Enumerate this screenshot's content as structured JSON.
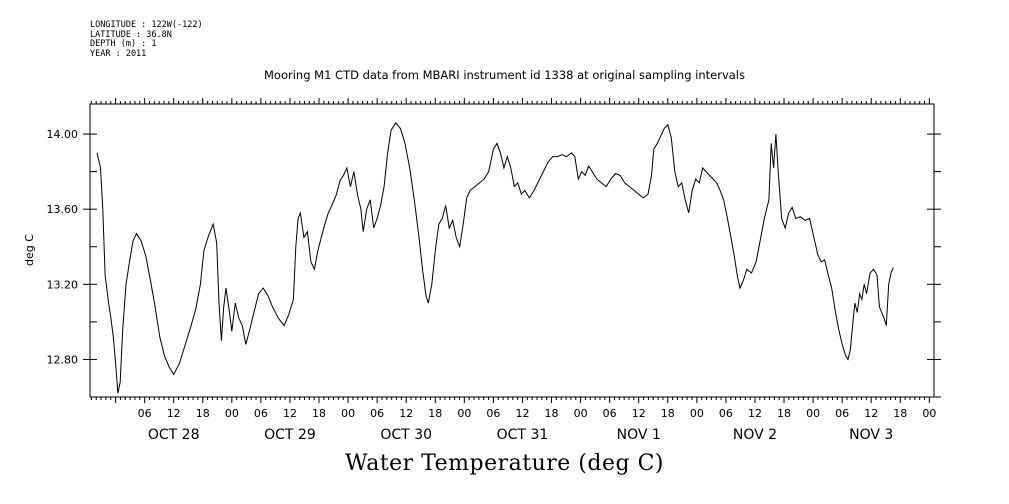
{
  "meta": {
    "longitude": "LONGITUDE : 122W(-122)",
    "latitude": "LATITUDE : 36.8N",
    "depth": "DEPTH (m) : 1",
    "year": "YEAR : 2011"
  },
  "chart_data": {
    "type": "line",
    "title": "Mooring M1 CTD data from MBARI instrument id 1338 at original sampling intervals",
    "xlabel": "Water Temperature (deg C)",
    "ylabel": "deg C",
    "ylim": [
      12.6,
      14.16
    ],
    "xlim": [
      -0.22,
      7.04
    ],
    "x_units": "days since 2011-10-28 00:00",
    "yticks": [
      12.8,
      13.2,
      13.6,
      14.0
    ],
    "ytick_labels": [
      "12.80",
      "13.20",
      "13.60",
      "14.00"
    ],
    "hour_ticks": [
      "06",
      "12",
      "18",
      "00",
      "06",
      "12",
      "18",
      "00",
      "06",
      "12",
      "18",
      "00",
      "06",
      "12",
      "18",
      "00",
      "06",
      "12",
      "18",
      "00",
      "06",
      "12",
      "18",
      "00",
      "06",
      "12",
      "18",
      "00"
    ],
    "hour_tick_positions": [
      0.25,
      0.5,
      0.75,
      1.0,
      1.25,
      1.5,
      1.75,
      2.0,
      2.25,
      2.5,
      2.75,
      3.0,
      3.25,
      3.5,
      3.75,
      4.0,
      4.25,
      4.5,
      4.75,
      5.0,
      5.25,
      5.5,
      5.75,
      6.0,
      6.25,
      6.5,
      6.75,
      7.0
    ],
    "day_labels": [
      "OCT 28",
      "OCT 29",
      "OCT 30",
      "OCT 31",
      "NOV  1",
      "NOV  2",
      "NOV  3"
    ],
    "day_label_positions": [
      0.5,
      1.5,
      2.5,
      3.5,
      4.5,
      5.5,
      6.5
    ],
    "grid": false,
    "series": [
      {
        "values": [
          [
            -0.16,
            13.9
          ],
          [
            -0.13,
            13.82
          ],
          [
            -0.11,
            13.6
          ],
          [
            -0.09,
            13.25
          ],
          [
            -0.06,
            13.1
          ],
          [
            -0.04,
            13.02
          ],
          [
            -0.02,
            12.92
          ],
          [
            0.0,
            12.78
          ],
          [
            0.02,
            12.62
          ],
          [
            0.04,
            12.68
          ],
          [
            0.06,
            12.95
          ],
          [
            0.09,
            13.2
          ],
          [
            0.12,
            13.32
          ],
          [
            0.15,
            13.43
          ],
          [
            0.18,
            13.47
          ],
          [
            0.22,
            13.43
          ],
          [
            0.26,
            13.35
          ],
          [
            0.3,
            13.22
          ],
          [
            0.34,
            13.08
          ],
          [
            0.38,
            12.92
          ],
          [
            0.42,
            12.82
          ],
          [
            0.46,
            12.76
          ],
          [
            0.5,
            12.72
          ],
          [
            0.55,
            12.78
          ],
          [
            0.6,
            12.88
          ],
          [
            0.65,
            12.98
          ],
          [
            0.69,
            13.07
          ],
          [
            0.73,
            13.2
          ],
          [
            0.76,
            13.38
          ],
          [
            0.8,
            13.46
          ],
          [
            0.84,
            13.52
          ],
          [
            0.87,
            13.42
          ],
          [
            0.89,
            13.1
          ],
          [
            0.91,
            12.9
          ],
          [
            0.93,
            13.08
          ],
          [
            0.95,
            13.18
          ],
          [
            0.98,
            13.05
          ],
          [
            1.0,
            12.95
          ],
          [
            1.03,
            13.1
          ],
          [
            1.06,
            13.02
          ],
          [
            1.09,
            12.98
          ],
          [
            1.12,
            12.88
          ],
          [
            1.15,
            12.95
          ],
          [
            1.19,
            13.05
          ],
          [
            1.23,
            13.15
          ],
          [
            1.27,
            13.18
          ],
          [
            1.31,
            13.14
          ],
          [
            1.35,
            13.08
          ],
          [
            1.4,
            13.02
          ],
          [
            1.45,
            12.98
          ],
          [
            1.49,
            13.04
          ],
          [
            1.53,
            13.12
          ],
          [
            1.55,
            13.4
          ],
          [
            1.57,
            13.55
          ],
          [
            1.59,
            13.58
          ],
          [
            1.62,
            13.45
          ],
          [
            1.65,
            13.48
          ],
          [
            1.68,
            13.32
          ],
          [
            1.71,
            13.28
          ],
          [
            1.74,
            13.38
          ],
          [
            1.77,
            13.45
          ],
          [
            1.8,
            13.52
          ],
          [
            1.83,
            13.58
          ],
          [
            1.86,
            13.62
          ],
          [
            1.9,
            13.68
          ],
          [
            1.93,
            13.75
          ],
          [
            1.96,
            13.78
          ],
          [
            1.99,
            13.82
          ],
          [
            2.02,
            13.72
          ],
          [
            2.05,
            13.8
          ],
          [
            2.08,
            13.68
          ],
          [
            2.11,
            13.6
          ],
          [
            2.13,
            13.48
          ],
          [
            2.16,
            13.6
          ],
          [
            2.19,
            13.65
          ],
          [
            2.22,
            13.5
          ],
          [
            2.25,
            13.55
          ],
          [
            2.28,
            13.62
          ],
          [
            2.31,
            13.72
          ],
          [
            2.34,
            13.9
          ],
          [
            2.37,
            14.02
          ],
          [
            2.41,
            14.06
          ],
          [
            2.45,
            14.03
          ],
          [
            2.49,
            13.95
          ],
          [
            2.53,
            13.82
          ],
          [
            2.57,
            13.65
          ],
          [
            2.61,
            13.45
          ],
          [
            2.64,
            13.28
          ],
          [
            2.67,
            13.14
          ],
          [
            2.69,
            13.1
          ],
          [
            2.72,
            13.2
          ],
          [
            2.75,
            13.38
          ],
          [
            2.78,
            13.52
          ],
          [
            2.81,
            13.55
          ],
          [
            2.84,
            13.62
          ],
          [
            2.87,
            13.5
          ],
          [
            2.9,
            13.54
          ],
          [
            2.93,
            13.45
          ],
          [
            2.96,
            13.4
          ],
          [
            2.99,
            13.52
          ],
          [
            3.02,
            13.66
          ],
          [
            3.05,
            13.7
          ],
          [
            3.09,
            13.72
          ],
          [
            3.13,
            13.74
          ],
          [
            3.17,
            13.76
          ],
          [
            3.21,
            13.8
          ],
          [
            3.25,
            13.92
          ],
          [
            3.28,
            13.95
          ],
          [
            3.31,
            13.9
          ],
          [
            3.34,
            13.82
          ],
          [
            3.37,
            13.88
          ],
          [
            3.4,
            13.82
          ],
          [
            3.43,
            13.72
          ],
          [
            3.46,
            13.74
          ],
          [
            3.49,
            13.68
          ],
          [
            3.52,
            13.7
          ],
          [
            3.56,
            13.66
          ],
          [
            3.6,
            13.7
          ],
          [
            3.64,
            13.75
          ],
          [
            3.68,
            13.8
          ],
          [
            3.72,
            13.85
          ],
          [
            3.76,
            13.88
          ],
          [
            3.8,
            13.88
          ],
          [
            3.84,
            13.89
          ],
          [
            3.88,
            13.88
          ],
          [
            3.92,
            13.9
          ],
          [
            3.95,
            13.88
          ],
          [
            3.98,
            13.76
          ],
          [
            4.01,
            13.8
          ],
          [
            4.04,
            13.78
          ],
          [
            4.07,
            13.83
          ],
          [
            4.1,
            13.8
          ],
          [
            4.14,
            13.76
          ],
          [
            4.18,
            13.74
          ],
          [
            4.22,
            13.72
          ],
          [
            4.26,
            13.76
          ],
          [
            4.3,
            13.79
          ],
          [
            4.34,
            13.78
          ],
          [
            4.38,
            13.74
          ],
          [
            4.42,
            13.72
          ],
          [
            4.46,
            13.7
          ],
          [
            4.5,
            13.68
          ],
          [
            4.54,
            13.66
          ],
          [
            4.58,
            13.68
          ],
          [
            4.61,
            13.78
          ],
          [
            4.63,
            13.92
          ],
          [
            4.66,
            13.95
          ],
          [
            4.69,
            13.99
          ],
          [
            4.72,
            14.03
          ],
          [
            4.75,
            14.05
          ],
          [
            4.78,
            13.98
          ],
          [
            4.81,
            13.8
          ],
          [
            4.84,
            13.72
          ],
          [
            4.87,
            13.74
          ],
          [
            4.9,
            13.65
          ],
          [
            4.93,
            13.58
          ],
          [
            4.96,
            13.7
          ],
          [
            4.99,
            13.76
          ],
          [
            5.02,
            13.74
          ],
          [
            5.05,
            13.82
          ],
          [
            5.08,
            13.8
          ],
          [
            5.11,
            13.78
          ],
          [
            5.14,
            13.76
          ],
          [
            5.17,
            13.74
          ],
          [
            5.2,
            13.7
          ],
          [
            5.23,
            13.65
          ],
          [
            5.26,
            13.56
          ],
          [
            5.29,
            13.46
          ],
          [
            5.32,
            13.36
          ],
          [
            5.35,
            13.24
          ],
          [
            5.37,
            13.18
          ],
          [
            5.4,
            13.22
          ],
          [
            5.43,
            13.28
          ],
          [
            5.47,
            13.26
          ],
          [
            5.51,
            13.32
          ],
          [
            5.55,
            13.45
          ],
          [
            5.58,
            13.55
          ],
          [
            5.6,
            13.6
          ],
          [
            5.62,
            13.65
          ],
          [
            5.64,
            13.95
          ],
          [
            5.66,
            13.82
          ],
          [
            5.68,
            14.0
          ],
          [
            5.7,
            13.8
          ],
          [
            5.73,
            13.55
          ],
          [
            5.76,
            13.5
          ],
          [
            5.79,
            13.58
          ],
          [
            5.82,
            13.61
          ],
          [
            5.85,
            13.55
          ],
          [
            5.89,
            13.56
          ],
          [
            5.93,
            13.54
          ],
          [
            5.97,
            13.55
          ],
          [
            6.01,
            13.44
          ],
          [
            6.04,
            13.36
          ],
          [
            6.07,
            13.32
          ],
          [
            6.1,
            13.33
          ],
          [
            6.13,
            13.25
          ],
          [
            6.16,
            13.18
          ],
          [
            6.19,
            13.06
          ],
          [
            6.22,
            12.96
          ],
          [
            6.25,
            12.88
          ],
          [
            6.28,
            12.82
          ],
          [
            6.3,
            12.8
          ],
          [
            6.32,
            12.85
          ],
          [
            6.34,
            12.98
          ],
          [
            6.36,
            13.1
          ],
          [
            6.38,
            13.05
          ],
          [
            6.4,
            13.15
          ],
          [
            6.42,
            13.12
          ],
          [
            6.44,
            13.2
          ],
          [
            6.46,
            13.15
          ],
          [
            6.49,
            13.26
          ],
          [
            6.52,
            13.28
          ],
          [
            6.55,
            13.25
          ],
          [
            6.57,
            13.08
          ],
          [
            6.59,
            13.05
          ],
          [
            6.61,
            13.02
          ],
          [
            6.63,
            12.98
          ],
          [
            6.65,
            13.2
          ],
          [
            6.67,
            13.26
          ],
          [
            6.69,
            13.29
          ]
        ]
      }
    ]
  }
}
